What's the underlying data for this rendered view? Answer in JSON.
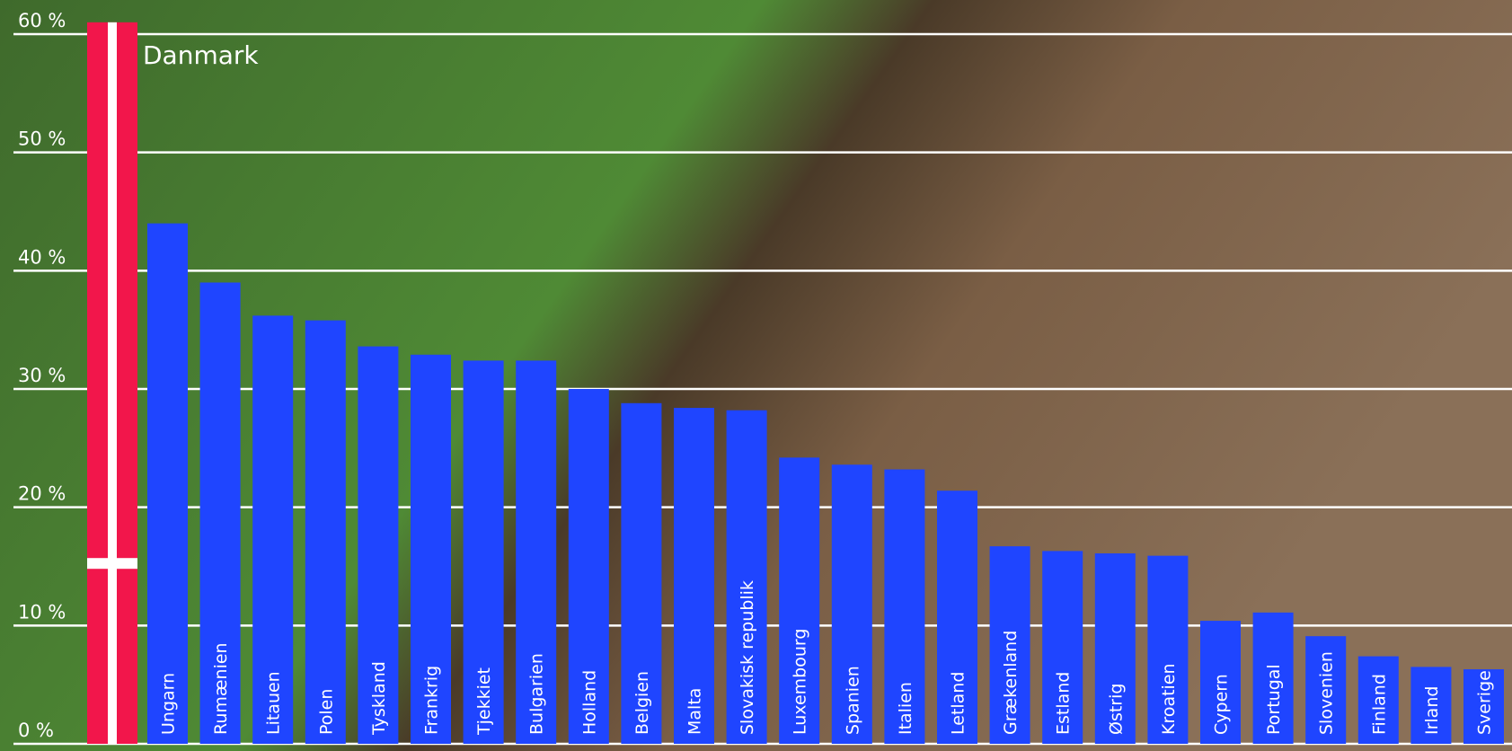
{
  "chart_data": {
    "type": "bar",
    "categories": [
      "Danmark",
      "Ungarn",
      "Rumænien",
      "Litauen",
      "Polen",
      "Tyskland",
      "Frankrig",
      "Tjekkiet",
      "Bulgarien",
      "Holland",
      "Belgien",
      "Malta",
      "Slovakisk republik",
      "Luxembourg",
      "Spanien",
      "Italien",
      "Letland",
      "Grækenland",
      "Estland",
      "Østrig",
      "Kroatien",
      "Cypern",
      "Portugal",
      "Slovenien",
      "Finland",
      "Irland",
      "Sverige"
    ],
    "values": [
      61,
      44,
      39,
      36.2,
      35.8,
      33.6,
      32.9,
      32.4,
      32.4,
      30,
      28.8,
      28.4,
      28.2,
      24.2,
      23.6,
      23.2,
      21.4,
      16.7,
      16.3,
      16.1,
      15.9,
      10.4,
      11.1,
      9.1,
      7.4,
      6.5,
      6.3
    ],
    "colors": [
      "#f2164b",
      "#1f45ff",
      "#1f45ff",
      "#1f45ff",
      "#1f45ff",
      "#1f45ff",
      "#1f45ff",
      "#1f45ff",
      "#1f45ff",
      "#1f45ff",
      "#1f45ff",
      "#1f45ff",
      "#1f45ff",
      "#1f45ff",
      "#1f45ff",
      "#1f45ff",
      "#1f45ff",
      "#1f45ff",
      "#1f45ff",
      "#1f45ff",
      "#1f45ff",
      "#1f45ff",
      "#1f45ff",
      "#1f45ff",
      "#1f45ff",
      "#1f45ff",
      "#1f45ff"
    ],
    "ylim": [
      0,
      60
    ],
    "yticks": [
      {
        "value": 0,
        "label": "0 %"
      },
      {
        "value": 10,
        "label": "10 %"
      },
      {
        "value": 20,
        "label": "20 %"
      },
      {
        "value": 30,
        "label": "30 %"
      },
      {
        "value": 40,
        "label": "40 %"
      },
      {
        "value": 50,
        "label": "50 %"
      },
      {
        "value": 60,
        "label": "60 %"
      }
    ],
    "grid": true
  }
}
